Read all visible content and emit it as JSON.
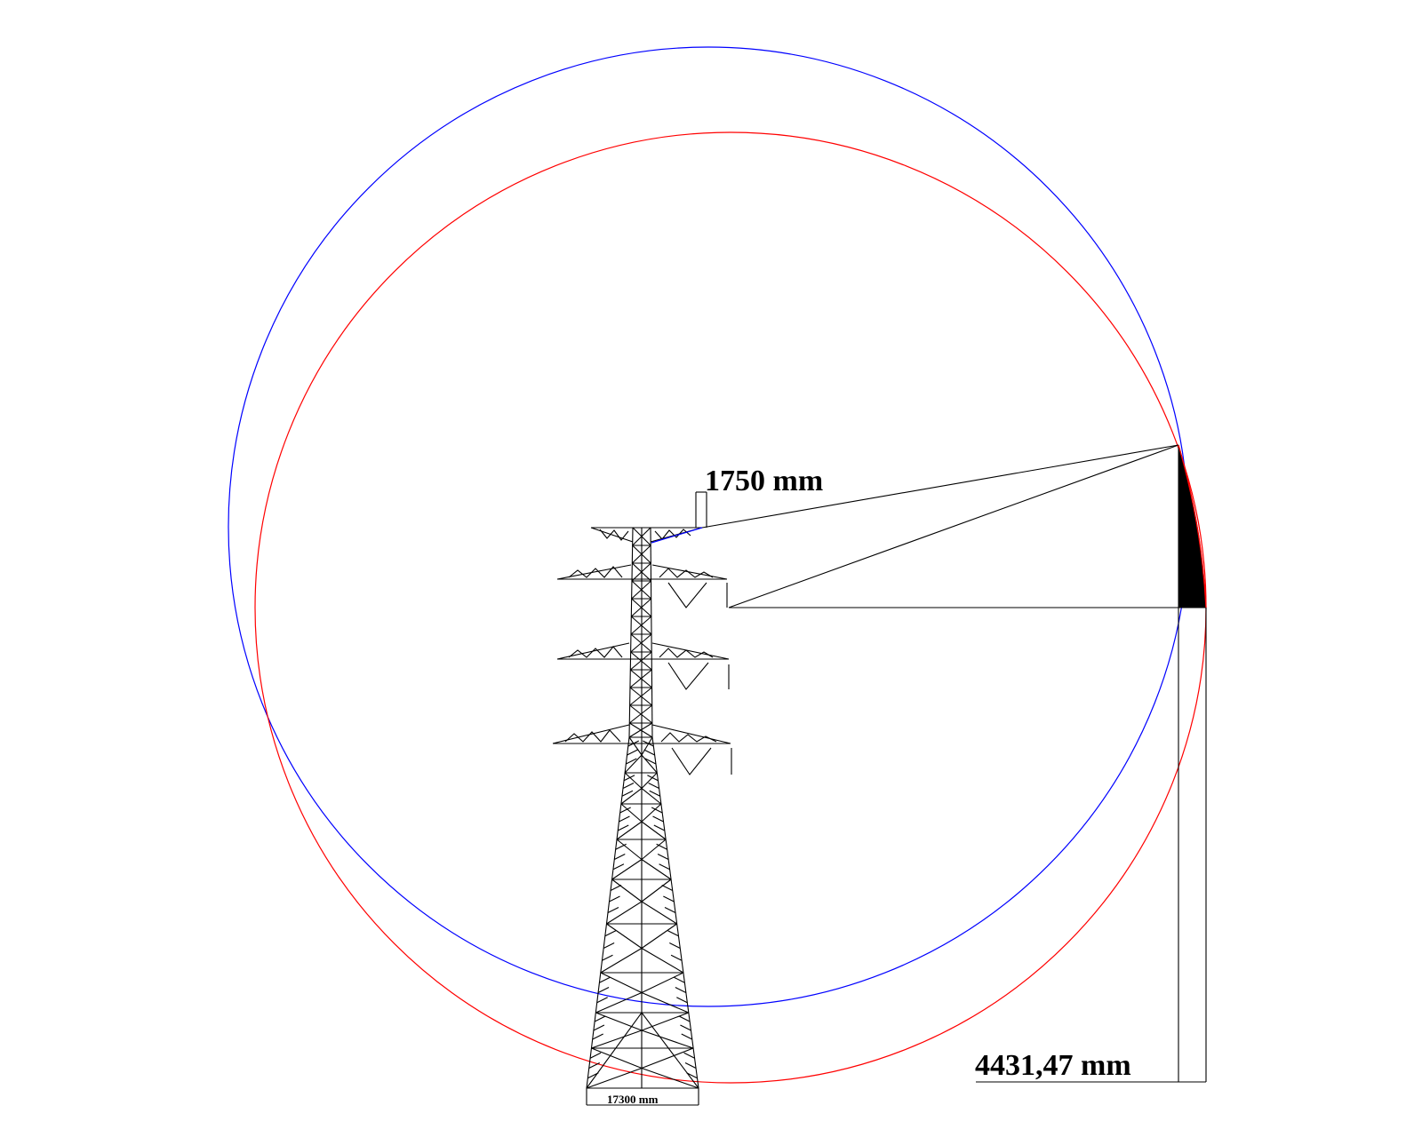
{
  "labels": {
    "crossarm_dimension": "1750 mm",
    "displacement_dimension": "4431,47 mm",
    "base_width_dimension": "17300  mm"
  },
  "colors": {
    "circle_upper": "#0000ff",
    "circle_lower": "#ff0000",
    "structure": "#000000",
    "background": "#ffffff"
  }
}
